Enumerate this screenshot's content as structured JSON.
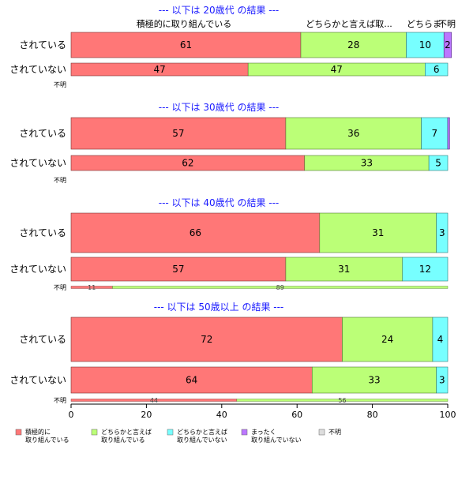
{
  "chart_data": {
    "type": "bar",
    "orientation": "horizontal",
    "stacked": true,
    "xlim": [
      0,
      100
    ],
    "x_ticks": [
      0,
      20,
      40,
      60,
      80,
      100
    ],
    "categories_order": [
      "積極的に取り組んでいる",
      "どちらかと言えば取り組んでいる",
      "どちらかと言えば取り組んでいない",
      "まったく取り組んでいない",
      "不明"
    ],
    "legend": {
      "placement": "bottom-left",
      "items": [
        {
          "line1": "積極的に",
          "line2": "取り組んでいる",
          "color": "#ff7777"
        },
        {
          "line1": "どちらかと言えば",
          "line2": "取り組んでいる",
          "color": "#bbff77"
        },
        {
          "line1": "どちらかと言えば",
          "line2": "取り組んでいない",
          "color": "#77ffff"
        },
        {
          "line1": "まったく",
          "line2": "取り組んでいない",
          "color": "#bb77ff"
        },
        {
          "line1": "不明",
          "line2": "",
          "color": "#dddddd"
        }
      ]
    },
    "column_headers": [
      "積極的に取り組んでいる",
      "どちらかと言えば取...",
      "どちらま",
      "不明"
    ],
    "panels": [
      {
        "title": "--- 以下は 20歳代 の結果 ---",
        "rows": [
          {
            "label": "されている",
            "values": [
              61,
              28,
              10,
              2,
              0
            ],
            "labels": [
              "61",
              "28",
              "10",
              "2",
              ""
            ]
          },
          {
            "label": "されていない",
            "values": [
              47,
              47,
              6,
              0,
              0
            ],
            "labels": [
              "47",
              "47",
              "6",
              "",
              ""
            ]
          }
        ],
        "unknown": {
          "label": "不明",
          "values": [],
          "labels": []
        }
      },
      {
        "title": "--- 以下は 30歳代 の結果 ---",
        "rows": [
          {
            "label": "されている",
            "values": [
              57,
              36,
              7,
              0.5,
              0
            ],
            "labels": [
              "57",
              "36",
              "7",
              "",
              ""
            ]
          },
          {
            "label": "されていない",
            "values": [
              62,
              33,
              5,
              0,
              0
            ],
            "labels": [
              "62",
              "33",
              "5",
              "",
              ""
            ]
          }
        ],
        "unknown": {
          "label": "不明",
          "values": [],
          "labels": []
        }
      },
      {
        "title": "--- 以下は 40歳代 の結果 ---",
        "rows": [
          {
            "label": "されている",
            "values": [
              66,
              31,
              3,
              0,
              0
            ],
            "labels": [
              "66",
              "31",
              "3",
              "",
              ""
            ]
          },
          {
            "label": "されていない",
            "values": [
              57,
              31,
              12,
              0,
              0
            ],
            "labels": [
              "57",
              "31",
              "12",
              "",
              ""
            ]
          }
        ],
        "unknown": {
          "label": "不明",
          "values": [
            11,
            89,
            0,
            0,
            0
          ],
          "labels": [
            "11",
            "89",
            "",
            "",
            ""
          ]
        }
      },
      {
        "title": "--- 以下は 50歳以上 の結果 ---",
        "rows": [
          {
            "label": "されている",
            "values": [
              72,
              24,
              4,
              0,
              0
            ],
            "labels": [
              "72",
              "24",
              "4",
              "",
              ""
            ]
          },
          {
            "label": "されていない",
            "values": [
              64,
              33,
              3,
              0,
              0
            ],
            "labels": [
              "64",
              "33",
              "3",
              "",
              ""
            ]
          }
        ],
        "unknown": {
          "label": "不明",
          "values": [
            44,
            56,
            0,
            0,
            0
          ],
          "labels": [
            "44",
            "56",
            "",
            "",
            ""
          ]
        }
      }
    ]
  }
}
